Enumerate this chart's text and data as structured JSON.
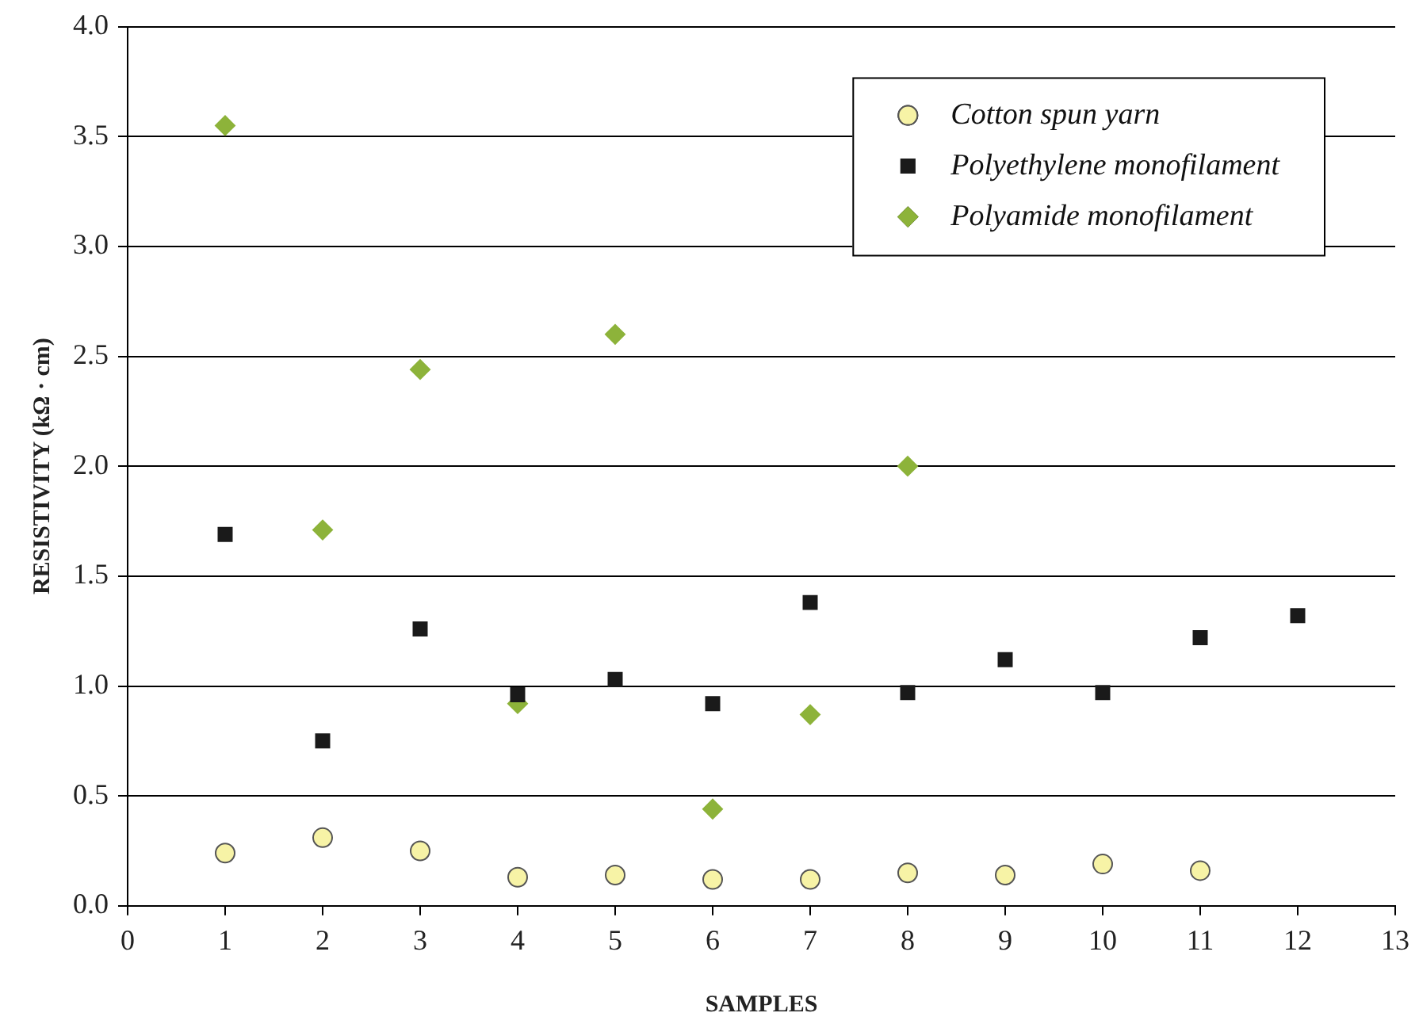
{
  "chart_data": {
    "type": "scatter",
    "xlabel": "SAMPLES",
    "ylabel": "RESISTIVITY (kΩ · cm)",
    "xlim": [
      0,
      13
    ],
    "xticks": [
      0,
      1,
      2,
      3,
      4,
      5,
      6,
      7,
      8,
      9,
      10,
      11,
      12,
      13
    ],
    "ylim": [
      0,
      4
    ],
    "yticks": [
      {
        "value": 0,
        "label": "0.0"
      },
      {
        "value": 0.5,
        "label": "0.5"
      },
      {
        "value": 1,
        "label": "1.0"
      },
      {
        "value": 1.5,
        "label": "1.5"
      },
      {
        "value": 2,
        "label": "2.0"
      },
      {
        "value": 2.5,
        "label": "2.5"
      },
      {
        "value": 3,
        "label": "3.0"
      },
      {
        "value": 3.5,
        "label": "3.5"
      },
      {
        "value": 4,
        "label": "4.0"
      }
    ],
    "grid": "y",
    "legend": "top right",
    "series": [
      {
        "name": "Cotton spun yarn",
        "color": "#f7f3a6",
        "marker": "circle",
        "x": [
          1,
          2,
          3,
          4,
          5,
          6,
          7,
          8,
          9,
          10,
          11
        ],
        "values": [
          0.24,
          0.31,
          0.25,
          0.13,
          0.14,
          0.12,
          0.12,
          0.15,
          0.14,
          0.19,
          0.16
        ]
      },
      {
        "name": "Polyethylene monofilament",
        "color": "#1a1a1a",
        "marker": "square",
        "x": [
          1,
          2,
          3,
          4,
          5,
          6,
          7,
          8,
          9,
          10,
          11,
          12
        ],
        "values": [
          1.69,
          0.75,
          1.26,
          0.96,
          1.03,
          0.92,
          1.38,
          0.97,
          1.12,
          0.97,
          1.22,
          1.32
        ]
      },
      {
        "name": "Polyamide monofilament",
        "color": "#8db33a",
        "marker": "diamond",
        "x": [
          1,
          2,
          3,
          4,
          5,
          6,
          7,
          8
        ],
        "values": [
          3.55,
          1.71,
          2.44,
          0.92,
          2.6,
          0.44,
          0.87,
          2.0
        ]
      }
    ]
  }
}
